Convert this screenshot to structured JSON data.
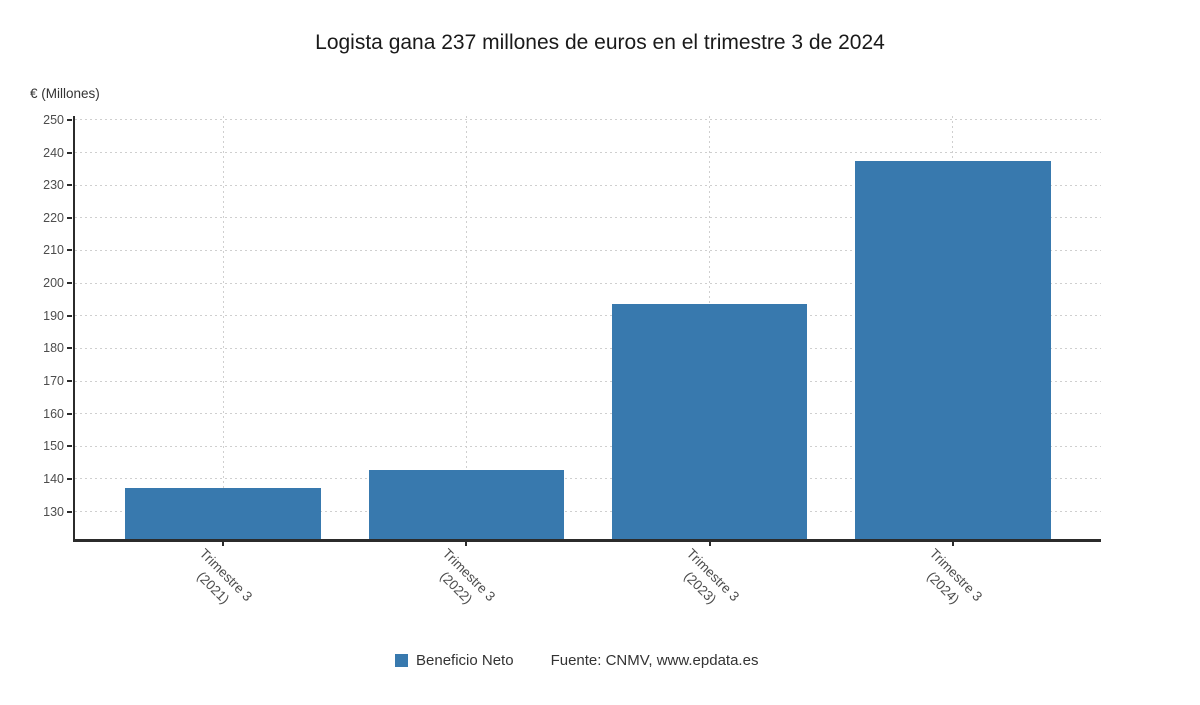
{
  "title": "Logista gana 237 millones de euros en el trimestre 3 de 2024",
  "y_axis_title": "€ (Millones)",
  "legend": {
    "series_label": "Beneficio Neto",
    "source": "Fuente: CNMV, www.epdata.es"
  },
  "colors": {
    "bar": "#3879ae",
    "axis": "#2b2b2b",
    "grid": "#cfcfcf",
    "tick_text": "#4d4d4d",
    "title_text": "#1a1a1a",
    "legend_text": "#333333"
  },
  "chart_data": {
    "type": "bar",
    "title": "Logista gana 237 millones de euros en el trimestre 3 de 2024",
    "categories": [
      "Trimestre 3 (2021)",
      "Trimestre 3 (2022)",
      "Trimestre 3 (2023)",
      "Trimestre 3 (2024)"
    ],
    "category_lines": [
      [
        "Trimestre 3",
        "(2021)"
      ],
      [
        "Trimestre 3",
        "(2022)"
      ],
      [
        "Trimestre 3",
        "(2023)"
      ],
      [
        "Trimestre 3",
        "(2024)"
      ]
    ],
    "series": [
      {
        "name": "Beneficio Neto",
        "values": [
          137.1,
          142.6,
          193.5,
          237.4
        ]
      }
    ],
    "xlabel": "",
    "ylabel": "€ (Millones)",
    "ylim": [
      121.6,
      251.2
    ],
    "yticks": [
      130,
      140,
      150,
      160,
      170,
      180,
      190,
      200,
      210,
      220,
      230,
      240,
      250
    ],
    "grid": "dashed",
    "legend_position": "bottom",
    "source": "Fuente: CNMV, www.epdata.es"
  }
}
